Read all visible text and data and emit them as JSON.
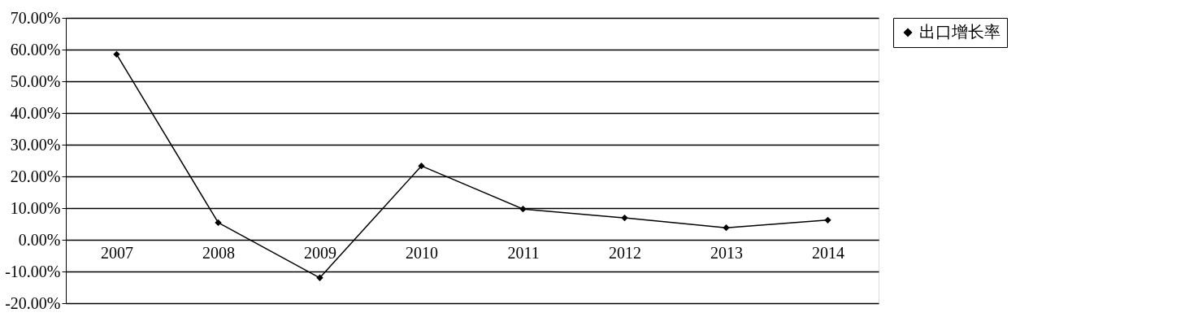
{
  "chart_data": {
    "type": "line",
    "categories": [
      "2007",
      "2008",
      "2009",
      "2010",
      "2011",
      "2012",
      "2013",
      "2014"
    ],
    "series": [
      {
        "name": "出口增长率",
        "color": "#000000",
        "values": [
          58.5,
          5.4,
          -12,
          23.3,
          9.7,
          6.9,
          3.8,
          6.2
        ]
      }
    ],
    "ylim": [
      -20,
      70
    ],
    "yticks": [
      {
        "value": -20,
        "label": "-20.00%"
      },
      {
        "value": -10,
        "label": "-10.00%"
      },
      {
        "value": 0,
        "label": "0.00%"
      },
      {
        "value": 10,
        "label": "10.00%"
      },
      {
        "value": 20,
        "label": "20.00%"
      },
      {
        "value": 30,
        "label": "30.00%"
      },
      {
        "value": 40,
        "label": "40.00%"
      },
      {
        "value": 50,
        "label": "50.00%"
      },
      {
        "value": 60,
        "label": "60.00%"
      },
      {
        "value": 70,
        "label": "70.00%"
      }
    ],
    "grid": "y",
    "legend": "right",
    "marker": "diamond",
    "line_style": "solid"
  }
}
